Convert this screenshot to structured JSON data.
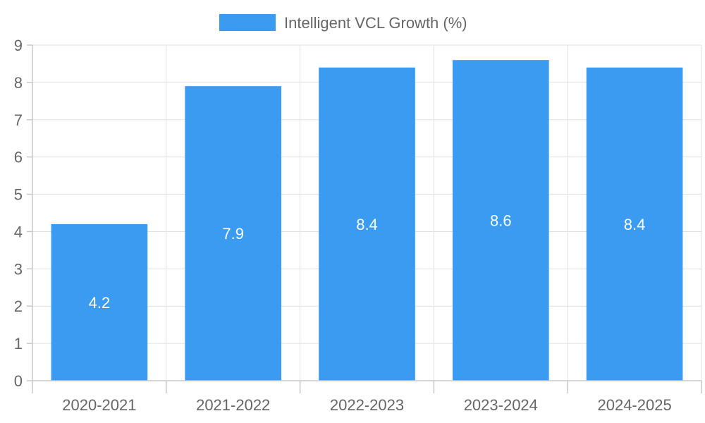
{
  "chart_data": {
    "type": "bar",
    "categories": [
      "2020-2021",
      "2021-2022",
      "2022-2023",
      "2023-2024",
      "2024-2025"
    ],
    "series": [
      {
        "name": "Intelligent VCL Growth (%)",
        "values": [
          4.2,
          7.9,
          8.4,
          8.6,
          8.4
        ],
        "color": "#3a9bf0"
      }
    ],
    "data_labels": [
      "4.2",
      "7.9",
      "8.4",
      "8.6",
      "8.4"
    ],
    "yticks": [
      "0",
      "1",
      "2",
      "3",
      "4",
      "5",
      "6",
      "7",
      "8",
      "9"
    ],
    "ylim": [
      0,
      9
    ],
    "grid": true,
    "legend_position": "top-center"
  }
}
